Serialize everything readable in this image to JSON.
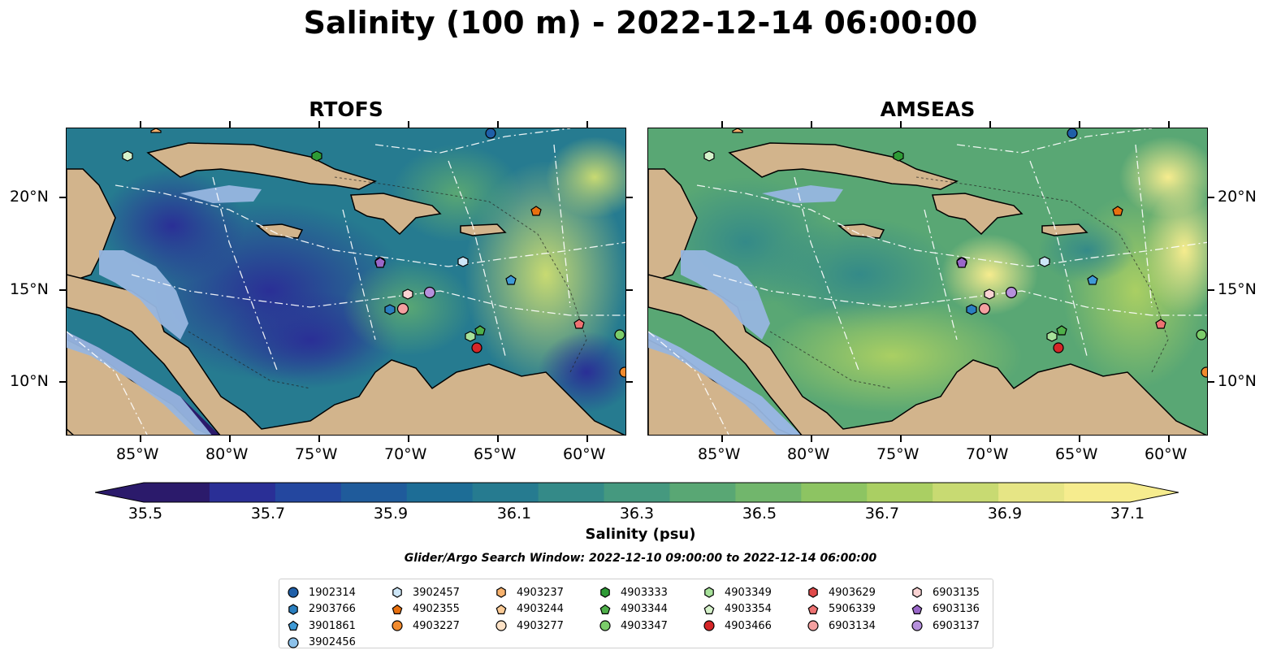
{
  "title": "Salinity (100 m) - 2022-12-14 06:00:00",
  "panels": [
    {
      "name": "RTOFS"
    },
    {
      "name": "AMSEAS"
    }
  ],
  "x_ticks": [
    "85°W",
    "80°W",
    "75°W",
    "70°W",
    "65°W",
    "60°W"
  ],
  "y_ticks": [
    "20°N",
    "15°N",
    "10°N"
  ],
  "colorbar": {
    "label": "Salinity (psu)",
    "ticks": [
      "35.5",
      "35.7",
      "35.9",
      "36.1",
      "36.3",
      "36.5",
      "36.7",
      "36.9",
      "37.1"
    ],
    "colors": [
      "#2b1a6b",
      "#2a2f96",
      "#24479f",
      "#1f5b9b",
      "#1d6d96",
      "#267b90",
      "#348a88",
      "#45997f",
      "#59a774",
      "#71b66c",
      "#8dc462",
      "#aacf63",
      "#c8da72",
      "#e6e585",
      "#f6ec8e"
    ]
  },
  "search_window": "Glider/Argo Search Window: 2022-12-10 09:00:00 to 2022-12-14 06:00:00",
  "legend": [
    {
      "id": "1902314",
      "shape": "circle",
      "color": "#1f5fa8"
    },
    {
      "id": "2903766",
      "shape": "hexagon",
      "color": "#2a7fc0"
    },
    {
      "id": "3901861",
      "shape": "pentagon",
      "color": "#3f9ad6"
    },
    {
      "id": "3902456",
      "shape": "circle",
      "color": "#8cc1ea"
    },
    {
      "id": "3902457",
      "shape": "hexagon",
      "color": "#cde6f7"
    },
    {
      "id": "4902355",
      "shape": "pentagon",
      "color": "#e8700f"
    },
    {
      "id": "4903227",
      "shape": "circle",
      "color": "#f28b2e"
    },
    {
      "id": "4903237",
      "shape": "hexagon",
      "color": "#f7b26e"
    },
    {
      "id": "4903244",
      "shape": "pentagon",
      "color": "#fbcb96"
    },
    {
      "id": "4903277",
      "shape": "circle",
      "color": "#fde2c6"
    },
    {
      "id": "4903333",
      "shape": "hexagon",
      "color": "#2e9b35"
    },
    {
      "id": "4903344",
      "shape": "pentagon",
      "color": "#4fb04a"
    },
    {
      "id": "4903347",
      "shape": "circle",
      "color": "#7bcd6a"
    },
    {
      "id": "4903349",
      "shape": "hexagon",
      "color": "#a7e19a"
    },
    {
      "id": "4903354",
      "shape": "pentagon",
      "color": "#d6f2cb"
    },
    {
      "id": "4903466",
      "shape": "circle",
      "color": "#d62628"
    },
    {
      "id": "4903629",
      "shape": "hexagon",
      "color": "#e04a4a"
    },
    {
      "id": "5906339",
      "shape": "pentagon",
      "color": "#ee7272"
    },
    {
      "id": "6903134",
      "shape": "circle",
      "color": "#f4a0a0"
    },
    {
      "id": "6903135",
      "shape": "hexagon",
      "color": "#fad3d3"
    },
    {
      "id": "6903136",
      "shape": "pentagon",
      "color": "#9a67c9"
    },
    {
      "id": "6903137",
      "shape": "circle",
      "color": "#b690dc"
    }
  ],
  "colors": {
    "land": "#d2b48c",
    "shallow": "#97b6e0",
    "coast": "#000000",
    "eez": "#ffffff"
  }
}
